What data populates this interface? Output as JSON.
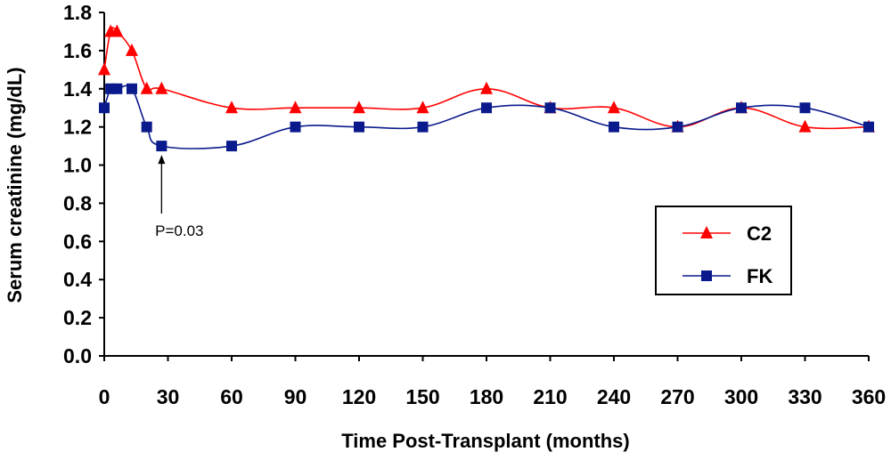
{
  "chart_data": {
    "type": "line",
    "xlabel": "Time Post-Transplant (months)",
    "ylabel": "Serum creatinine (mg/dL)",
    "xlim": [
      0,
      360
    ],
    "ylim": [
      0,
      1.8
    ],
    "x_ticks": [
      0,
      30,
      60,
      90,
      120,
      150,
      180,
      210,
      240,
      270,
      300,
      330,
      360
    ],
    "x_tick_labels": [
      "0",
      "30",
      "60",
      "90",
      "120",
      "150",
      "180",
      "210",
      "240",
      "270",
      "300",
      "330",
      "360"
    ],
    "y_ticks": [
      0,
      0.2,
      0.4,
      0.6,
      0.8,
      1.0,
      1.2,
      1.4,
      1.6,
      1.8
    ],
    "y_tick_labels": [
      "0.0",
      "0.2",
      "0.4",
      "0.6",
      "0.8",
      "1.0",
      "1.2",
      "1.4",
      "1.6",
      "1.8"
    ],
    "grid": false,
    "legend_position": "right",
    "series": [
      {
        "name": "C2",
        "color": "#ff0000",
        "marker": "triangle",
        "points": [
          {
            "x": 0,
            "y": 1.5
          },
          {
            "x": 3,
            "y": 1.7
          },
          {
            "x": 6,
            "y": 1.7
          },
          {
            "x": 13,
            "y": 1.6
          },
          {
            "x": 20,
            "y": 1.4
          },
          {
            "x": 27,
            "y": 1.4
          },
          {
            "x": 60,
            "y": 1.3
          },
          {
            "x": 90,
            "y": 1.3
          },
          {
            "x": 120,
            "y": 1.3
          },
          {
            "x": 150,
            "y": 1.3
          },
          {
            "x": 180,
            "y": 1.4
          },
          {
            "x": 210,
            "y": 1.3
          },
          {
            "x": 240,
            "y": 1.3
          },
          {
            "x": 270,
            "y": 1.2
          },
          {
            "x": 300,
            "y": 1.3
          },
          {
            "x": 330,
            "y": 1.2
          },
          {
            "x": 360,
            "y": 1.2
          }
        ]
      },
      {
        "name": "FK",
        "color": "#0a1a8c",
        "marker": "square",
        "points": [
          {
            "x": 0,
            "y": 1.3
          },
          {
            "x": 3,
            "y": 1.4
          },
          {
            "x": 6,
            "y": 1.4
          },
          {
            "x": 13,
            "y": 1.4
          },
          {
            "x": 20,
            "y": 1.2
          },
          {
            "x": 27,
            "y": 1.1
          },
          {
            "x": 60,
            "y": 1.1
          },
          {
            "x": 90,
            "y": 1.2
          },
          {
            "x": 120,
            "y": 1.2
          },
          {
            "x": 150,
            "y": 1.2
          },
          {
            "x": 180,
            "y": 1.3
          },
          {
            "x": 210,
            "y": 1.3
          },
          {
            "x": 240,
            "y": 1.2
          },
          {
            "x": 270,
            "y": 1.2
          },
          {
            "x": 300,
            "y": 1.3
          },
          {
            "x": 330,
            "y": 1.3
          },
          {
            "x": 360,
            "y": 1.2
          }
        ]
      }
    ],
    "annotations": [
      {
        "text": "P=0.03",
        "x": 27,
        "y": 1.1
      }
    ]
  }
}
